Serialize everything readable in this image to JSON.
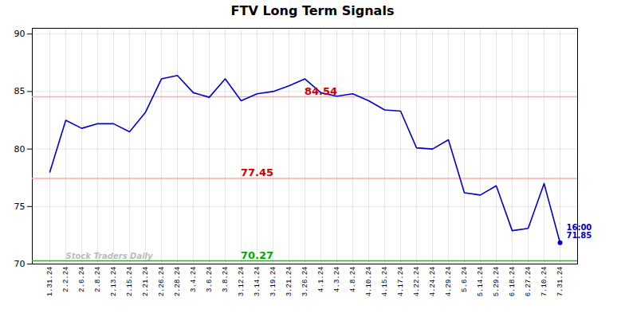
{
  "chart_data": {
    "type": "line",
    "title": "FTV Long Term Signals",
    "categories": [
      "1.31.24",
      "2.2.24",
      "2.6.24",
      "2.8.24",
      "2.13.24",
      "2.15.24",
      "2.21.24",
      "2.26.24",
      "2.28.24",
      "3.4.24",
      "3.6.24",
      "3.8.24",
      "3.12.24",
      "3.14.24",
      "3.19.24",
      "3.21.24",
      "3.26.24",
      "4.1.24",
      "4.3.24",
      "4.8.24",
      "4.10.24",
      "4.15.24",
      "4.17.24",
      "4.22.24",
      "4.24.24",
      "4.29.24",
      "5.6.24",
      "5.14.24",
      "5.29.24",
      "6.18.24",
      "6.27.24",
      "7.10.24",
      "7.31.24"
    ],
    "values": [
      78.0,
      82.5,
      81.8,
      82.2,
      82.2,
      81.5,
      83.2,
      86.1,
      86.4,
      84.9,
      84.5,
      86.1,
      84.2,
      84.8,
      85.0,
      85.5,
      86.1,
      84.9,
      84.6,
      84.8,
      84.2,
      83.4,
      83.3,
      80.1,
      80.0,
      80.8,
      76.2,
      76.0,
      76.8,
      72.9,
      73.1,
      77.0,
      71.85
    ],
    "color": "#0000cc",
    "ylim": [
      70,
      90.5
    ],
    "yticks": [
      70,
      75,
      80,
      85,
      90
    ],
    "grid": true,
    "reference_lines": [
      {
        "value": 84.54,
        "color": "#ffaaaa"
      },
      {
        "value": 77.45,
        "color": "#ffaaaa"
      },
      {
        "value": 70.27,
        "color": "#00cc00"
      }
    ],
    "annotations": [
      {
        "text": "84.54",
        "x": "4.1.24",
        "y": 84.54,
        "color": "#cc0000"
      },
      {
        "text": "77.45",
        "x": "3.14.24",
        "y": 77.45,
        "color": "#cc0000"
      },
      {
        "text": "70.27",
        "x": "3.14.24",
        "y": 70.27,
        "color": "#00aa00"
      },
      {
        "text": "Stock Traders Daily",
        "x": "2.2.24",
        "y": 70.35,
        "color": "#bbbbbb"
      },
      {
        "text": "16:00\n71.85",
        "x": "7.31.24",
        "y": 71.85,
        "color": "#0000cc",
        "marker": "circle"
      }
    ]
  }
}
